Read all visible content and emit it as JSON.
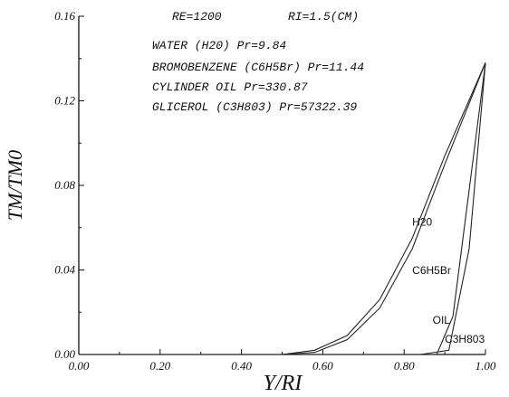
{
  "chart_data": {
    "type": "line",
    "title": "",
    "xlabel": "Y/RI",
    "ylabel": "TM/TM0",
    "xlim": [
      0.0,
      1.0
    ],
    "ylim": [
      0.0,
      0.16
    ],
    "x_ticks": [
      "0.00",
      "0.20",
      "0.40",
      "0.60",
      "0.80",
      "1.00"
    ],
    "y_ticks": [
      "0.00",
      "0.04",
      "0.08",
      "0.12",
      "0.16"
    ],
    "grid": false,
    "annotations": [
      "RE=1200",
      "RI=1.5(CM)",
      "WATER (H20) Pr=9.84",
      "BROMOBENZENE (C6H5Br) Pr=11.44",
      "CYLINDER OIL Pr=330.87",
      "GLICEROL (C3H803) Pr=57322.39"
    ],
    "series": [
      {
        "name": "H20",
        "x": [
          0.0,
          0.5,
          0.58,
          0.66,
          0.74,
          0.82,
          0.9,
          1.0
        ],
        "y": [
          0.0,
          0.0,
          0.002,
          0.009,
          0.026,
          0.055,
          0.094,
          0.138
        ]
      },
      {
        "name": "C6H5Br",
        "x": [
          0.0,
          0.5,
          0.58,
          0.66,
          0.74,
          0.82,
          0.9,
          1.0
        ],
        "y": [
          0.0,
          0.0,
          0.001,
          0.007,
          0.022,
          0.05,
          0.09,
          0.138
        ]
      },
      {
        "name": "OIL",
        "x": [
          0.0,
          0.88,
          0.92,
          1.0
        ],
        "y": [
          0.0,
          0.0,
          0.018,
          0.138
        ]
      },
      {
        "name": "C3H803",
        "x": [
          0.0,
          0.84,
          0.91,
          0.96,
          1.0
        ],
        "y": [
          0.0,
          0.0,
          0.002,
          0.05,
          0.138
        ]
      }
    ]
  }
}
